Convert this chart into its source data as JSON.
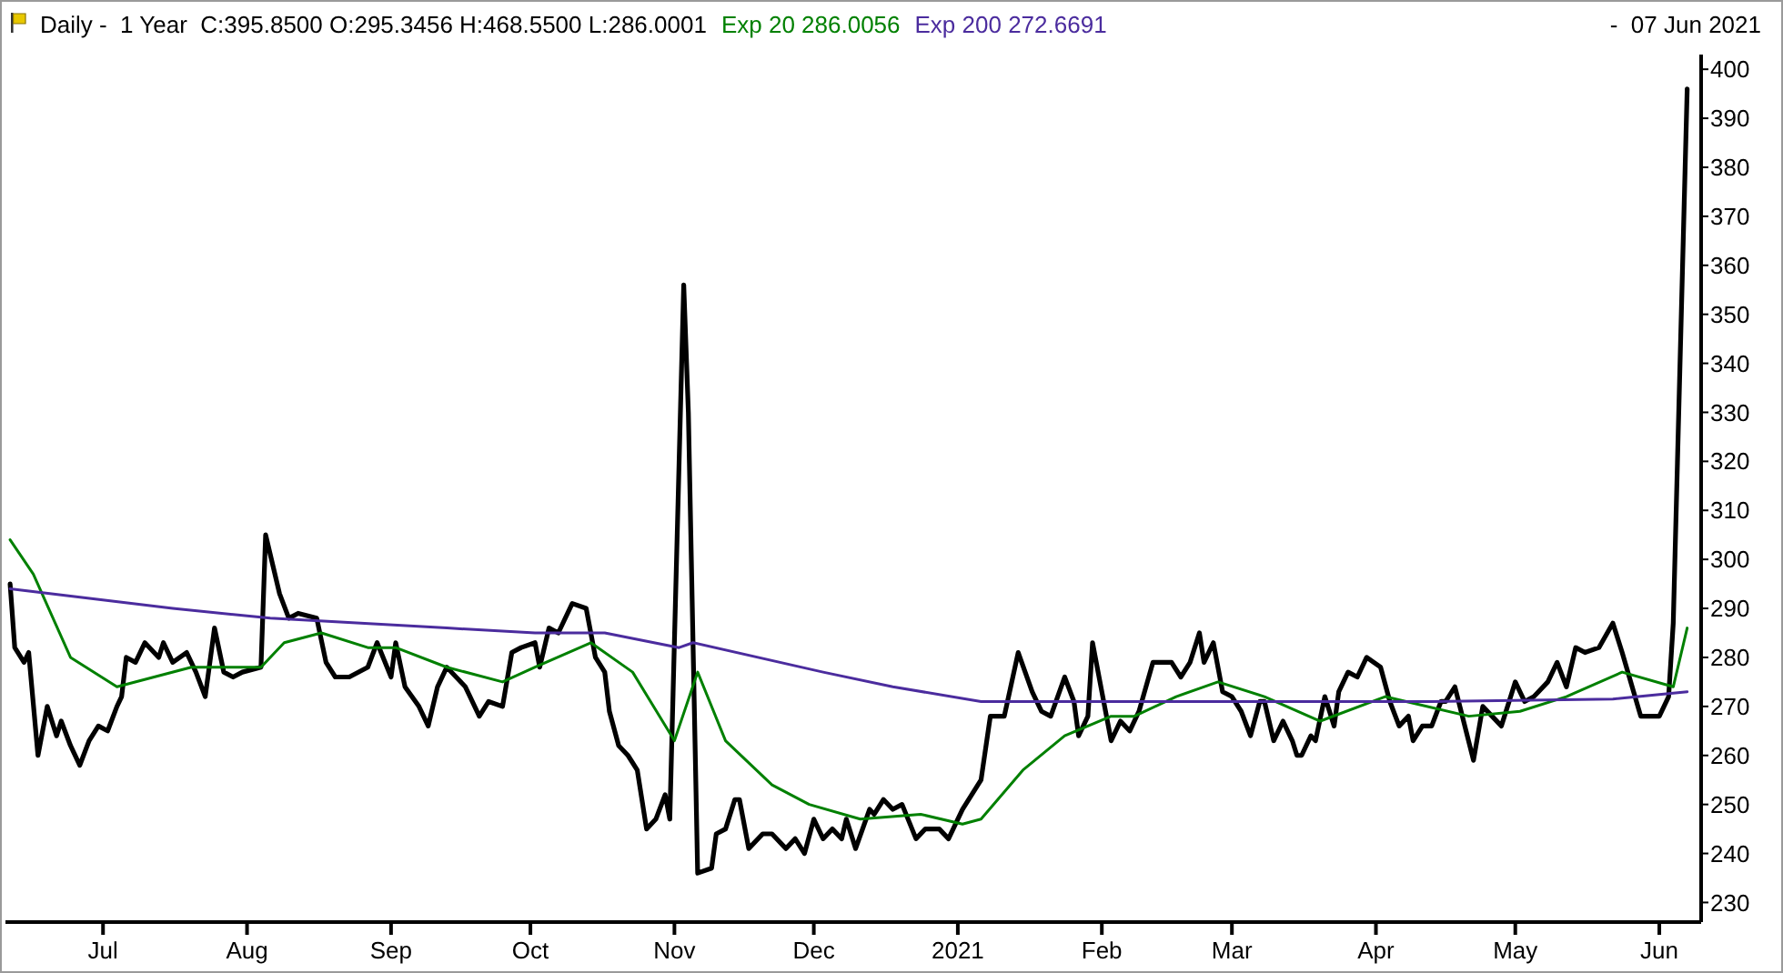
{
  "chart_data": {
    "type": "line",
    "title": "Daily -  1 Year  C:395.8500 O:295.3456 H:468.5500 L:286.0001",
    "annotations": [
      "-  07 Jun 2021"
    ],
    "xlim": [
      "2020-06-10",
      "2021-06-10"
    ],
    "xticks": [
      {
        "value": "2020-07-01",
        "label": "Jul"
      },
      {
        "value": "2020-08-01",
        "label": "Aug"
      },
      {
        "value": "2020-09-01",
        "label": "Sep"
      },
      {
        "value": "2020-10-01",
        "label": "Oct"
      },
      {
        "value": "2020-11-01",
        "label": "Nov"
      },
      {
        "value": "2020-12-01",
        "label": "Dec"
      },
      {
        "value": "2021-01-01",
        "label": "2021"
      },
      {
        "value": "2021-02-01",
        "label": "Feb"
      },
      {
        "value": "2021-03-01",
        "label": "Mar"
      },
      {
        "value": "2021-04-01",
        "label": "Apr"
      },
      {
        "value": "2021-05-01",
        "label": "May"
      },
      {
        "value": "2021-06-01",
        "label": "Jun"
      }
    ],
    "ylim": [
      226,
      403
    ],
    "yticks": [
      230,
      240,
      250,
      260,
      270,
      280,
      290,
      300,
      310,
      320,
      330,
      340,
      350,
      360,
      370,
      380,
      390,
      400
    ],
    "grid": false,
    "legend": "top",
    "marker": "none",
    "line_style": "solid",
    "series": [
      {
        "color": "#000000",
        "x": [
          "2020-06-11",
          "2020-06-12",
          "2020-06-14",
          "2020-06-15",
          "2020-06-17",
          "2020-06-19",
          "2020-06-21",
          "2020-06-22",
          "2020-06-24",
          "2020-06-26",
          "2020-06-28",
          "2020-06-30",
          "2020-07-02",
          "2020-07-04",
          "2020-07-05",
          "2020-07-06",
          "2020-07-08",
          "2020-07-10",
          "2020-07-13",
          "2020-07-14",
          "2020-07-16",
          "2020-07-19",
          "2020-07-21",
          "2020-07-23",
          "2020-07-25",
          "2020-07-27",
          "2020-07-29",
          "2020-07-31",
          "2020-08-04",
          "2020-08-05",
          "2020-08-08",
          "2020-08-10",
          "2020-08-12",
          "2020-08-16",
          "2020-08-18",
          "2020-08-20",
          "2020-08-23",
          "2020-08-27",
          "2020-08-29",
          "2020-09-01",
          "2020-09-02",
          "2020-09-04",
          "2020-09-07",
          "2020-09-09",
          "2020-09-11",
          "2020-09-13",
          "2020-09-15",
          "2020-09-17",
          "2020-09-20",
          "2020-09-22",
          "2020-09-25",
          "2020-09-27",
          "2020-09-29",
          "2020-10-02",
          "2020-10-03",
          "2020-10-05",
          "2020-10-07",
          "2020-10-10",
          "2020-10-13",
          "2020-10-15",
          "2020-10-17",
          "2020-10-18",
          "2020-10-20",
          "2020-10-22",
          "2020-10-24",
          "2020-10-26",
          "2020-10-28",
          "2020-10-30",
          "2020-10-31",
          "2020-11-03",
          "2020-11-04",
          "2020-11-06",
          "2020-11-09",
          "2020-11-10",
          "2020-11-12",
          "2020-11-14",
          "2020-11-15",
          "2020-11-17",
          "2020-11-20",
          "2020-11-22",
          "2020-11-25",
          "2020-11-27",
          "2020-11-29",
          "2020-12-01",
          "2020-12-03",
          "2020-12-05",
          "2020-12-07",
          "2020-12-08",
          "2020-12-10",
          "2020-12-13",
          "2020-12-14",
          "2020-12-16",
          "2020-12-18",
          "2020-12-20",
          "2020-12-23",
          "2020-12-25",
          "2020-12-28",
          "2020-12-30",
          "2021-01-02",
          "2021-01-06",
          "2021-01-08",
          "2021-01-11",
          "2021-01-14",
          "2021-01-17",
          "2021-01-19",
          "2021-01-21",
          "2021-01-24",
          "2021-01-26",
          "2021-01-27",
          "2021-01-29",
          "2021-01-30",
          "2021-02-03",
          "2021-02-05",
          "2021-02-07",
          "2021-02-09",
          "2021-02-12",
          "2021-02-13",
          "2021-02-16",
          "2021-02-18",
          "2021-02-20",
          "2021-02-22",
          "2021-02-23",
          "2021-02-25",
          "2021-02-27",
          "2021-03-01",
          "2021-03-03",
          "2021-03-05",
          "2021-03-07",
          "2021-03-08",
          "2021-03-10",
          "2021-03-12",
          "2021-03-14",
          "2021-03-15",
          "2021-03-16",
          "2021-03-18",
          "2021-03-19",
          "2021-03-21",
          "2021-03-23",
          "2021-03-24",
          "2021-03-26",
          "2021-03-28",
          "2021-03-30",
          "2021-04-02",
          "2021-04-04",
          "2021-04-06",
          "2021-04-08",
          "2021-04-09",
          "2021-04-11",
          "2021-04-13",
          "2021-04-15",
          "2021-04-16",
          "2021-04-18",
          "2021-04-22",
          "2021-04-24",
          "2021-04-26",
          "2021-04-28",
          "2021-05-01",
          "2021-05-03",
          "2021-05-05",
          "2021-05-08",
          "2021-05-10",
          "2021-05-12",
          "2021-05-14",
          "2021-05-16",
          "2021-05-19",
          "2021-05-22",
          "2021-05-24",
          "2021-05-28",
          "2021-06-01",
          "2021-06-03",
          "2021-06-04",
          "2021-06-07"
        ],
        "values": [
          295,
          282,
          279,
          281,
          260,
          270,
          264,
          267,
          262,
          258,
          263,
          266,
          265,
          270,
          272,
          280,
          279,
          283,
          280,
          283,
          279,
          281,
          277,
          272,
          286,
          277,
          276,
          277,
          278,
          305,
          293,
          288,
          289,
          288,
          279,
          276,
          276,
          278,
          283,
          276,
          283,
          274,
          270,
          266,
          274,
          278,
          276,
          274,
          268,
          271,
          270,
          281,
          282,
          283,
          278,
          286,
          285,
          291,
          290,
          280,
          277,
          269,
          262,
          260,
          257,
          245,
          247,
          252,
          247,
          356,
          330,
          236,
          237,
          244,
          245,
          251,
          251,
          241,
          244,
          244,
          241,
          243,
          240,
          247,
          243,
          245,
          243,
          247,
          241,
          249,
          248,
          251,
          249,
          250,
          243,
          245,
          245,
          243,
          249,
          255,
          268,
          268,
          281,
          273,
          269,
          268,
          276,
          271,
          264,
          268,
          283,
          263,
          267,
          265,
          269,
          279,
          279,
          279,
          276,
          279,
          285,
          279,
          283,
          273,
          272,
          269,
          264,
          271,
          271,
          263,
          267,
          263,
          260,
          260,
          264,
          263,
          272,
          266,
          273,
          277,
          276,
          280,
          278,
          271,
          266,
          268,
          263,
          266,
          266,
          271,
          271,
          274,
          259,
          270,
          268,
          266,
          275,
          271,
          272,
          275,
          279,
          274,
          282,
          281,
          282,
          287,
          281,
          268,
          268,
          272,
          287,
          396
        ]
      },
      {
        "name": "Exp 20 286.0056",
        "color": "#008000",
        "x": [
          "2020-06-11",
          "2020-06-16",
          "2020-06-24",
          "2020-07-04",
          "2020-07-20",
          "2020-07-26",
          "2020-08-04",
          "2020-08-09",
          "2020-08-17",
          "2020-08-27",
          "2020-09-02",
          "2020-09-13",
          "2020-09-25",
          "2020-10-02",
          "2020-10-14",
          "2020-10-23",
          "2020-11-01",
          "2020-11-06",
          "2020-11-12",
          "2020-11-22",
          "2020-11-30",
          "2020-12-11",
          "2020-12-24",
          "2021-01-02",
          "2021-01-06",
          "2021-01-15",
          "2021-01-24",
          "2021-02-03",
          "2021-02-08",
          "2021-02-17",
          "2021-02-26",
          "2021-03-08",
          "2021-03-20",
          "2021-04-03",
          "2021-04-21",
          "2021-05-02",
          "2021-05-12",
          "2021-05-24",
          "2021-06-04",
          "2021-06-07"
        ],
        "values": [
          304,
          297,
          280,
          274,
          278,
          278,
          278,
          283,
          285,
          282,
          282,
          278,
          275,
          278,
          283,
          277,
          263,
          277,
          263,
          254,
          250,
          247,
          248,
          246,
          247,
          257,
          264,
          268,
          268,
          272,
          275,
          272,
          267,
          272,
          268,
          269,
          272,
          277,
          274,
          286
        ]
      },
      {
        "name": "Exp 200 272.6691",
        "color": "#4b2c9e",
        "x": [
          "2020-06-11",
          "2020-07-16",
          "2020-08-06",
          "2020-09-13",
          "2020-10-02",
          "2020-10-17",
          "2020-11-02",
          "2020-11-05",
          "2020-12-03",
          "2020-12-18",
          "2021-01-06",
          "2021-02-05",
          "2021-03-08",
          "2021-04-13",
          "2021-05-22",
          "2021-06-07"
        ],
        "values": [
          294,
          290,
          288,
          286,
          285,
          285,
          282,
          283,
          277,
          274,
          271,
          271,
          271,
          271,
          271.5,
          273
        ]
      }
    ]
  }
}
